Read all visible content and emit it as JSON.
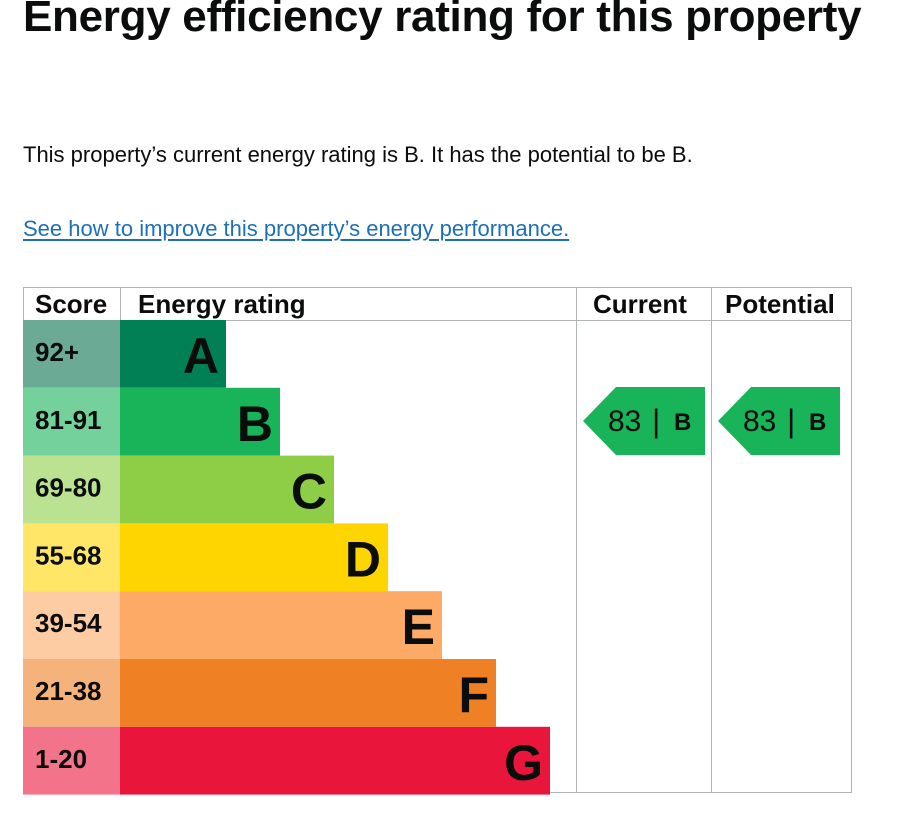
{
  "page": {
    "title": "Energy efficiency rating for this property",
    "summary": "This property’s current energy rating is B. It has the potential to be B.",
    "improve_link": "See how to improve this property’s energy performance."
  },
  "table": {
    "headers": {
      "score": "Score",
      "rating": "Energy rating",
      "current": "Current",
      "potential": "Potential"
    },
    "bands": [
      {
        "letter": "A",
        "score": "92+",
        "bar_color": "#008054",
        "score_color": "#6bab95"
      },
      {
        "letter": "B",
        "score": "81-91",
        "bar_color": "#19b459",
        "score_color": "#75d19b"
      },
      {
        "letter": "C",
        "score": "69-80",
        "bar_color": "#8dce46",
        "score_color": "#bbe290"
      },
      {
        "letter": "D",
        "score": "55-68",
        "bar_color": "#ffd500",
        "score_color": "#ffe666"
      },
      {
        "letter": "E",
        "score": "39-54",
        "bar_color": "#fcaa65",
        "score_color": "#fdcca3"
      },
      {
        "letter": "F",
        "score": "21-38",
        "bar_color": "#ef8023",
        "score_color": "#f5b37b"
      },
      {
        "letter": "G",
        "score": "1-20",
        "bar_color": "#e9153b",
        "score_color": "#f2738a"
      }
    ],
    "current": {
      "score": "83",
      "band": "B",
      "color": "#19b459"
    },
    "potential": {
      "score": "83",
      "band": "B",
      "color": "#19b459"
    }
  }
}
